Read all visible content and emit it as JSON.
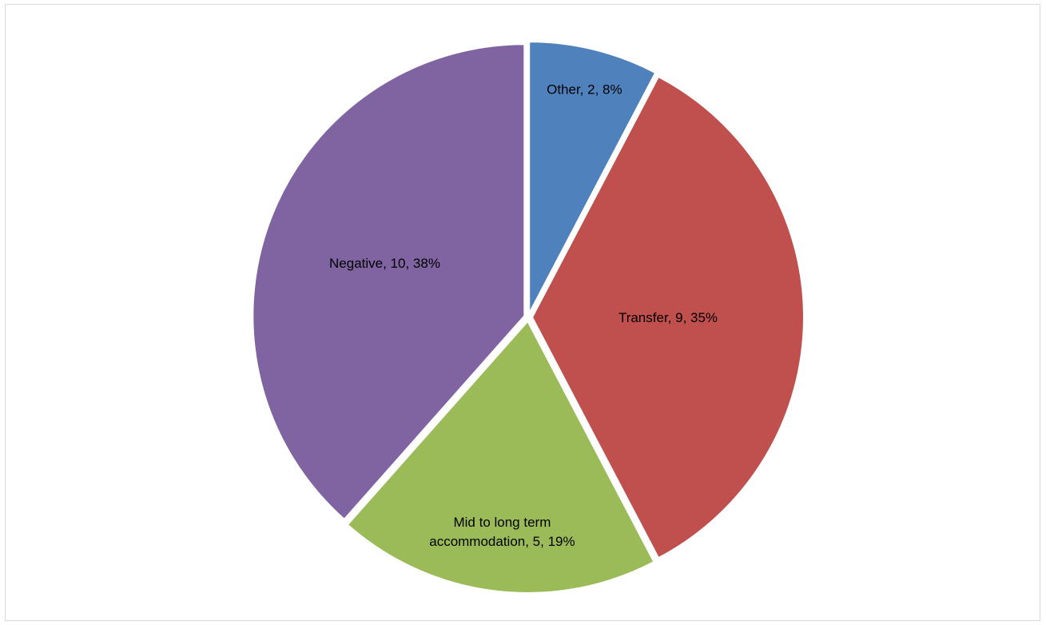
{
  "chart_data": {
    "type": "pie",
    "categories": [
      "Other",
      "Transfer",
      "Mid to long term accommodation",
      "Negative"
    ],
    "values": [
      2,
      9,
      5,
      10
    ],
    "percentages": [
      8,
      35,
      19,
      38
    ],
    "colors": [
      "#4F81BD",
      "#C0504D",
      "#9BBB59",
      "#8064A2"
    ],
    "data_labels": [
      [
        "Other, 2, 8%"
      ],
      [
        "Transfer, 9, 35%"
      ],
      [
        "Mid to long term",
        "accommodation, 5, 19%"
      ],
      [
        "Negative, 10, 38%"
      ]
    ],
    "legend": "none"
  }
}
